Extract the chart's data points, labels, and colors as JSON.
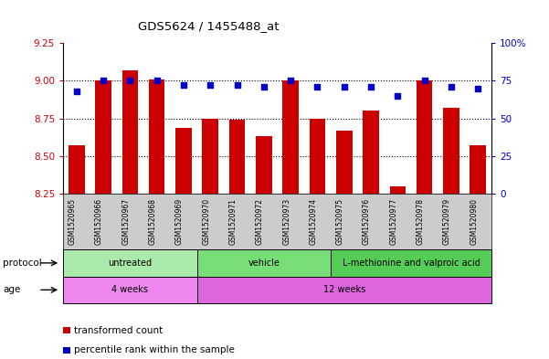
{
  "title": "GDS5624 / 1455488_at",
  "samples": [
    "GSM1520965",
    "GSM1520966",
    "GSM1520967",
    "GSM1520968",
    "GSM1520969",
    "GSM1520970",
    "GSM1520971",
    "GSM1520972",
    "GSM1520973",
    "GSM1520974",
    "GSM1520975",
    "GSM1520976",
    "GSM1520977",
    "GSM1520978",
    "GSM1520979",
    "GSM1520980"
  ],
  "transformed_count": [
    8.57,
    9.0,
    9.07,
    9.01,
    8.69,
    8.75,
    8.74,
    8.63,
    9.0,
    8.75,
    8.67,
    8.8,
    8.3,
    9.0,
    8.82,
    8.57
  ],
  "percentile_rank": [
    68,
    75,
    75,
    75,
    72,
    72,
    72,
    71,
    75,
    71,
    71,
    71,
    65,
    75,
    71,
    70
  ],
  "left_ylim": [
    8.25,
    9.25
  ],
  "right_ylim": [
    0,
    100
  ],
  "left_yticks": [
    8.25,
    8.5,
    8.75,
    9.0,
    9.25
  ],
  "right_yticks": [
    0,
    25,
    50,
    75,
    100
  ],
  "bar_color": "#cc0000",
  "dot_color": "#0000cc",
  "protocol_groups": [
    {
      "label": "untreated",
      "start": 0,
      "end": 4,
      "color": "#aaeaaa"
    },
    {
      "label": "vehicle",
      "start": 5,
      "end": 9,
      "color": "#77dd77"
    },
    {
      "label": "L-methionine and valproic acid",
      "start": 10,
      "end": 15,
      "color": "#55cc55"
    }
  ],
  "age_groups": [
    {
      "label": "4 weeks",
      "start": 0,
      "end": 4,
      "color": "#ee88ee"
    },
    {
      "label": "12 weeks",
      "start": 5,
      "end": 15,
      "color": "#dd66dd"
    }
  ],
  "protocol_label": "protocol",
  "age_label": "age",
  "legend_bar_label": "transformed count",
  "legend_dot_label": "percentile rank within the sample",
  "bg_color": "#ffffff",
  "tick_label_color_left": "#cc0000",
  "tick_label_color_right": "#0000cc",
  "title_color": "#000000",
  "sample_bg_color": "#cccccc"
}
